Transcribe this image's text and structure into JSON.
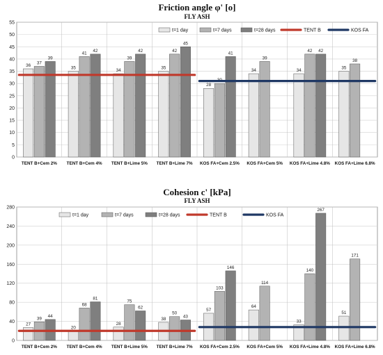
{
  "chart_data": [
    {
      "type": "bar",
      "title": "Friction angle φ' [o]",
      "subtitle": "FLY ASH",
      "categories": [
        "TENT B+Cem 2%",
        "TENT B+Cem 4%",
        "TENT B+Lime 5%",
        "TENT B+Lime 7%",
        "KOS FA+Cem 2.5%",
        "KOS FA+Cem 5%",
        "KOS FA+Lime 4.8%",
        "KOS FA+Lime 6.8%"
      ],
      "series": [
        {
          "name": "t=1 day",
          "color": "#e6e6e6",
          "values": [
            36,
            35,
            34,
            35,
            28,
            34,
            34,
            35
          ]
        },
        {
          "name": "t=7 days",
          "color": "#b3b3b3",
          "values": [
            37,
            41,
            39,
            42,
            30,
            39,
            42,
            38
          ]
        },
        {
          "name": "t=28 days",
          "color": "#7f7f7f",
          "values": [
            39,
            42,
            42,
            45,
            41,
            null,
            42,
            null
          ]
        }
      ],
      "data_labels": [
        [
          "36",
          "35",
          "34",
          "35",
          "28",
          "34",
          "34",
          "35"
        ],
        [
          "37",
          "41",
          "39",
          "42",
          "30",
          "39",
          "42",
          "38"
        ],
        [
          "39",
          "42",
          "42",
          "45",
          "41",
          "",
          "42",
          ""
        ]
      ],
      "reference_lines": [
        {
          "name": "TENT B",
          "color": "#c0392b",
          "value": 33.5,
          "from_category": 0,
          "to_category": 3
        },
        {
          "name": "KOS FA",
          "color": "#1f3864",
          "value": 31,
          "from_category": 4,
          "to_category": 7
        }
      ],
      "ylim": [
        0,
        55
      ],
      "yticks": [
        0,
        5,
        10,
        15,
        20,
        25,
        30,
        35,
        40,
        45,
        50,
        55
      ],
      "grid": true,
      "legend": "top"
    },
    {
      "type": "bar",
      "title": "Cohesion c' [kPa]",
      "subtitle": "FLY ASH",
      "categories": [
        "TENT B+Cem 2%",
        "TENT B+Cem 4%",
        "TENT B+Lime 5%",
        "TENT B+Lime 7%",
        "KOS FA+Cem 2.5%",
        "KOS FA+Cem 5%",
        "KOS FA+Lime 4.8%",
        "KOS FA+Lime 6.8%"
      ],
      "series": [
        {
          "name": "t=1 day",
          "color": "#e6e6e6",
          "values": [
            27,
            20,
            28,
            38,
            57,
            64,
            33,
            51
          ]
        },
        {
          "name": "t=7 days",
          "color": "#b3b3b3",
          "values": [
            39,
            68,
            75,
            50,
            103,
            114,
            140,
            171
          ]
        },
        {
          "name": "t=28 days",
          "color": "#7f7f7f",
          "values": [
            44,
            81,
            62,
            43,
            146,
            null,
            267,
            null
          ]
        }
      ],
      "data_labels": [
        [
          "27",
          "20",
          "28",
          "38",
          "57",
          "64",
          "33",
          "51"
        ],
        [
          "39",
          "68",
          "75",
          "50",
          "103",
          "114",
          "140",
          "171"
        ],
        [
          "44",
          "81",
          "62",
          "43",
          "146",
          "",
          "267",
          ""
        ]
      ],
      "reference_lines": [
        {
          "name": "TENT B",
          "color": "#c0392b",
          "value": 20,
          "from_category": 0,
          "to_category": 3
        },
        {
          "name": "KOS FA",
          "color": "#1f3864",
          "value": 28,
          "from_category": 4,
          "to_category": 7
        }
      ],
      "ylim": [
        0,
        280
      ],
      "yticks": [
        0,
        40,
        80,
        120,
        160,
        200,
        240,
        280
      ],
      "grid": true,
      "legend": "top"
    }
  ]
}
